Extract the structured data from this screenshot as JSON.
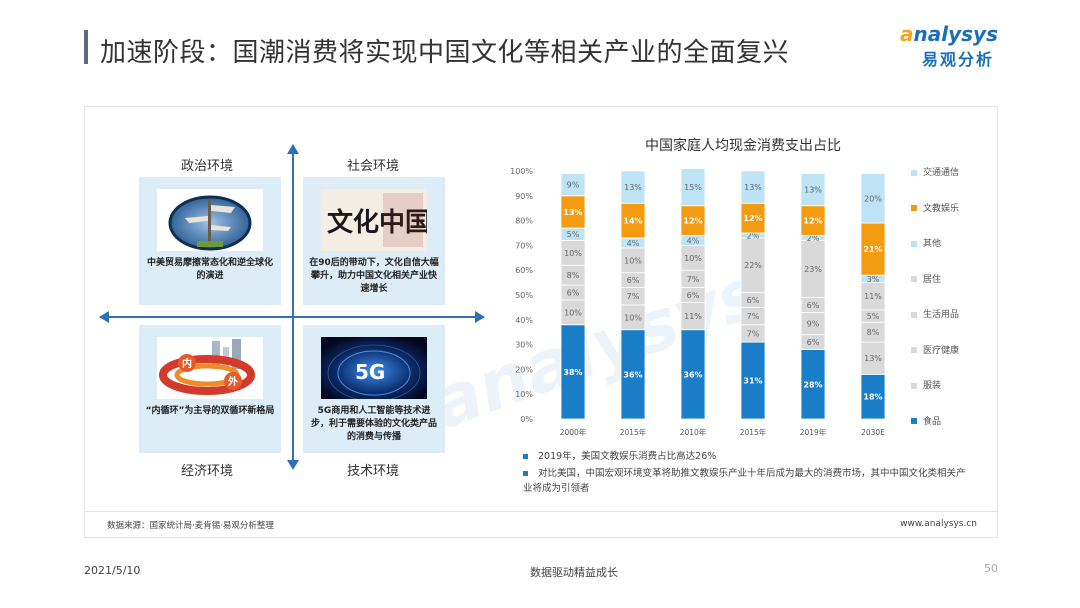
{
  "header": {
    "title": "加速阶段：国潮消费将实现中国文化等相关产业的全面复兴",
    "logo_en_a": "a",
    "logo_en_rest": "nalysys",
    "logo_cn": "易观分析"
  },
  "diagram": {
    "quadrants": [
      {
        "label": "政治环境",
        "text": "中美贸易摩擦常态化和逆全球化的演进"
      },
      {
        "label": "社会环境",
        "text": "在90后的带动下，文化自信大幅攀升，助力中国文化相关产业快速增长",
        "image_text": "文化中国"
      },
      {
        "label": "经济环境",
        "text": "“内循环”为主导的双循环新格局",
        "image_text_left": "内",
        "image_text_right": "外"
      },
      {
        "label": "技术环境",
        "text": "5G商用和人工智能等技术进步，利于需要体验的文化类产品的消费与传播",
        "image_text": "5G"
      }
    ]
  },
  "chart_data": {
    "type": "bar",
    "stacked": true,
    "title": "中国家庭人均现金消费支出占比",
    "categories": [
      "2000年",
      "2015年",
      "2010年",
      "2015年",
      "2019年",
      "2030E"
    ],
    "y_ticks": [
      "0%",
      "10%",
      "20%",
      "30%",
      "40%",
      "50%",
      "60%",
      "70%",
      "80%",
      "90%",
      "100%"
    ],
    "ylim": [
      0,
      100
    ],
    "series": [
      {
        "name": "食品",
        "color": "#1a7dc7",
        "values": [
          38,
          36,
          36,
          31,
          28,
          18
        ],
        "labels": [
          "38%",
          "36%",
          "36%",
          "31%",
          "28%",
          "18%"
        ]
      },
      {
        "name": "服装",
        "color": "#d9d9d9",
        "values": [
          10,
          10,
          11,
          7,
          6,
          13
        ],
        "labels": [
          "10%",
          "10%",
          "11%",
          "7%",
          "6%",
          "13%"
        ]
      },
      {
        "name": "医疗健康",
        "color": "#d9d9d9",
        "values": [
          6,
          7,
          6,
          7,
          9,
          8
        ],
        "labels": [
          "6%",
          "7%",
          "6%",
          "7%",
          "9%",
          "8%"
        ]
      },
      {
        "name": "生活用品",
        "color": "#d9d9d9",
        "values": [
          8,
          6,
          7,
          6,
          6,
          5
        ],
        "labels": [
          "8%",
          "6%",
          "7%",
          "6%",
          "6%",
          "5%"
        ]
      },
      {
        "name": "居住",
        "color": "#d9d9d9",
        "values": [
          10,
          10,
          10,
          22,
          23,
          11
        ],
        "labels": [
          "10%",
          "10%",
          "10%",
          "22%",
          "23%",
          "11%"
        ]
      },
      {
        "name": "其他",
        "color": "#bde3f5",
        "values": [
          5,
          4,
          4,
          2,
          2,
          3
        ],
        "labels": [
          "5%",
          "4%",
          "4%",
          "2%",
          "2%",
          "3%"
        ]
      },
      {
        "name": "文教娱乐",
        "color": "#f39c12",
        "values": [
          13,
          14,
          12,
          12,
          12,
          21
        ],
        "labels": [
          "13%",
          "14%",
          "12%",
          "12%",
          "12%",
          "21%"
        ]
      },
      {
        "name": "交通通信",
        "color": "#bde3f5",
        "values": [
          9,
          13,
          15,
          13,
          13,
          20
        ],
        "labels": [
          "9%",
          "13%",
          "15%",
          "13%",
          "13%",
          "20%"
        ]
      }
    ],
    "legend": [
      "交通通信",
      "文教娱乐",
      "其他",
      "居住",
      "生活用品",
      "医疗健康",
      "服装",
      "食品"
    ],
    "legend_colors": [
      "#bde3f5",
      "#f39c12",
      "#bde3f5",
      "#d9d9d9",
      "#d9d9d9",
      "#d9d9d9",
      "#d9d9d9",
      "#1a7dc7"
    ],
    "legend_position": "right"
  },
  "notes": [
    "2019年，美国文教娱乐消费占比高达26%",
    "对比美国，中国宏观环境变革将助推文教娱乐产业十年后成为最大的消费市场，其中中国文化类相关产业将成为引领者"
  ],
  "source": "数据来源：国家统计局·麦肯锡·易观分析整理",
  "website": "www.analysys.cn",
  "footer": {
    "date": "2021/5/10",
    "slogan": "数据驱动精益成长",
    "page": "50"
  }
}
